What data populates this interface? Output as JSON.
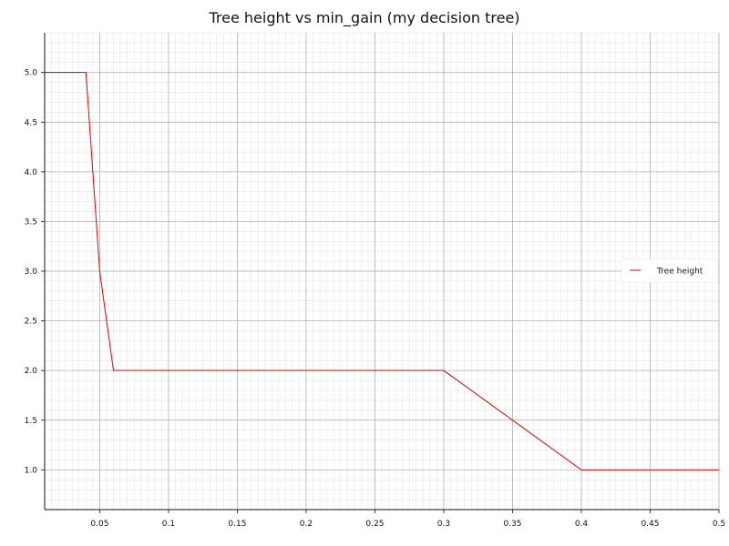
{
  "chart_data": {
    "type": "line",
    "title": "Tree height vs min_gain (my decision tree)",
    "xlabel": "",
    "ylabel": "",
    "xlim": [
      0.01,
      0.5
    ],
    "ylim": [
      0.6,
      5.4
    ],
    "x_ticks": [
      "0.05",
      "0.1",
      "0.15",
      "0.2",
      "0.25",
      "0.3",
      "0.35",
      "0.4",
      "0.45",
      "0.5"
    ],
    "y_ticks": [
      "1.0",
      "1.5",
      "2.0",
      "2.5",
      "3.0",
      "3.5",
      "4.0",
      "4.5",
      "5.0"
    ],
    "grid": true,
    "legend_position": "right",
    "series": [
      {
        "name": "Tree height",
        "color": "#dd0000",
        "x": [
          0.01,
          0.04,
          0.05,
          0.06,
          0.3,
          0.4,
          0.5
        ],
        "y": [
          5,
          5,
          3,
          2,
          2,
          1,
          1
        ]
      }
    ]
  }
}
